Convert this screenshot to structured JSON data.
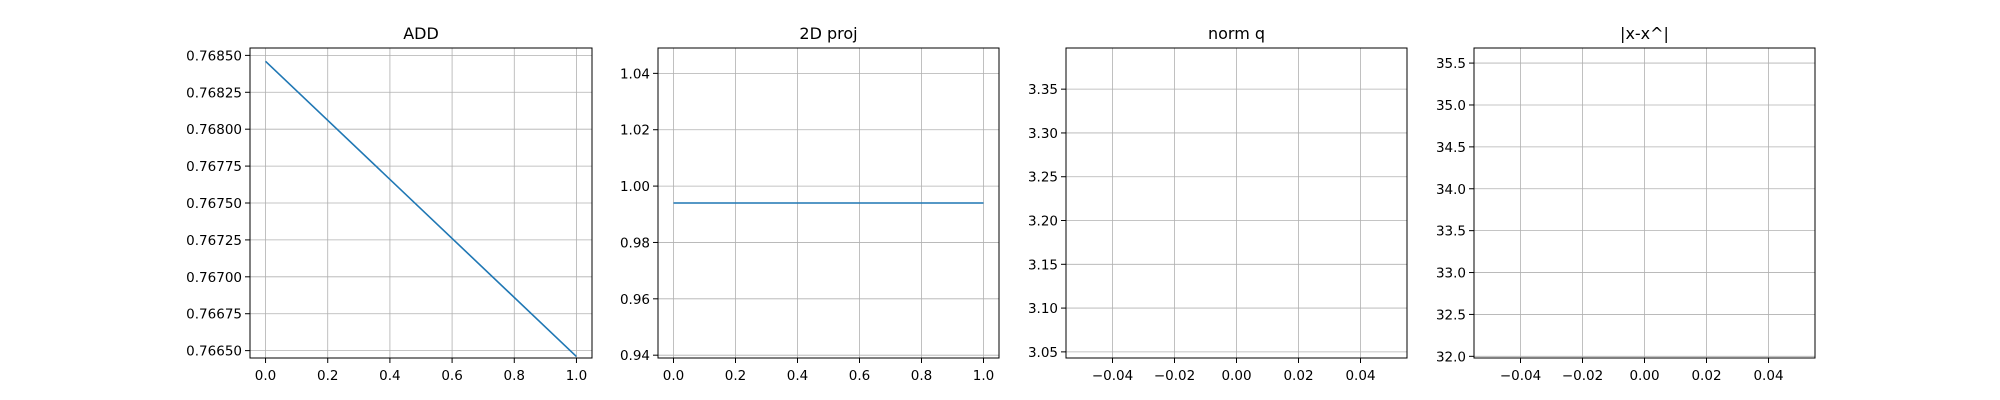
{
  "chart_data": [
    {
      "type": "line",
      "title": "ADD",
      "xlabel": "",
      "ylabel": "",
      "grid": true,
      "xlim": [
        -0.05,
        1.05
      ],
      "ylim": [
        0.76645,
        0.76855
      ],
      "xticks": [
        0.0,
        0.2,
        0.4,
        0.6,
        0.8,
        1.0
      ],
      "xtick_labels": [
        "0.0",
        "0.2",
        "0.4",
        "0.6",
        "0.8",
        "1.0"
      ],
      "yticks": [
        0.7665,
        0.76675,
        0.767,
        0.76725,
        0.7675,
        0.76775,
        0.768,
        0.76825,
        0.7685
      ],
      "ytick_labels": [
        "0.76650",
        "0.76675",
        "0.76700",
        "0.76725",
        "0.76750",
        "0.76775",
        "0.76800",
        "0.76825",
        "0.76850"
      ],
      "series": [
        {
          "x": [
            0,
            1
          ],
          "y": [
            0.76846,
            0.76646
          ],
          "color": "#1f77b4"
        }
      ]
    },
    {
      "type": "line",
      "title": "2D proj",
      "xlabel": "",
      "ylabel": "",
      "grid": true,
      "xlim": [
        -0.05,
        1.05
      ],
      "ylim": [
        0.939,
        1.049
      ],
      "xticks": [
        0.0,
        0.2,
        0.4,
        0.6,
        0.8,
        1.0
      ],
      "xtick_labels": [
        "0.0",
        "0.2",
        "0.4",
        "0.6",
        "0.8",
        "1.0"
      ],
      "yticks": [
        0.94,
        0.96,
        0.98,
        1.0,
        1.02,
        1.04
      ],
      "ytick_labels": [
        "0.94",
        "0.96",
        "0.98",
        "1.00",
        "1.02",
        "1.04"
      ],
      "series": [
        {
          "x": [
            0,
            1
          ],
          "y": [
            0.994,
            0.994
          ],
          "color": "#1f77b4"
        }
      ]
    },
    {
      "type": "line",
      "title": "norm q",
      "xlabel": "",
      "ylabel": "",
      "grid": true,
      "xlim": [
        -0.055,
        0.055
      ],
      "ylim": [
        3.043,
        3.397
      ],
      "xticks": [
        -0.04,
        -0.02,
        0.0,
        0.02,
        0.04
      ],
      "xtick_labels": [
        "−0.04",
        "−0.02",
        "0.00",
        "0.02",
        "0.04"
      ],
      "yticks": [
        3.05,
        3.1,
        3.15,
        3.2,
        3.25,
        3.3,
        3.35
      ],
      "ytick_labels": [
        "3.05",
        "3.10",
        "3.15",
        "3.20",
        "3.25",
        "3.30",
        "3.35"
      ],
      "series": []
    },
    {
      "type": "line",
      "title": "|x-x^|",
      "xlabel": "",
      "ylabel": "",
      "grid": true,
      "xlim": [
        -0.055,
        0.055
      ],
      "ylim": [
        31.98,
        35.68
      ],
      "xticks": [
        -0.04,
        -0.02,
        0.0,
        0.02,
        0.04
      ],
      "xtick_labels": [
        "−0.04",
        "−0.02",
        "0.00",
        "0.02",
        "0.04"
      ],
      "yticks": [
        32.0,
        32.5,
        33.0,
        33.5,
        34.0,
        34.5,
        35.0,
        35.5
      ],
      "ytick_labels": [
        "32.0",
        "32.5",
        "33.0",
        "33.5",
        "34.0",
        "34.5",
        "35.0",
        "35.5"
      ],
      "series": []
    }
  ]
}
